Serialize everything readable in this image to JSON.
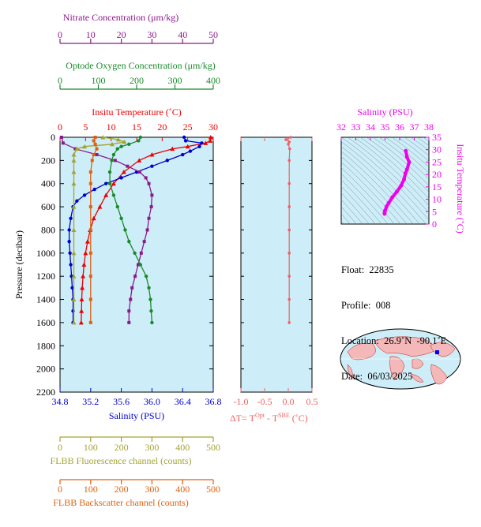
{
  "colors": {
    "nitrate": "#8b1a8b",
    "oxygen": "#1a8a2a",
    "temperature": "#ee0000",
    "salinity": "#0000cc",
    "fluorescence": "#a3a332",
    "backscatter": "#e06010",
    "salinity_panel": "#ee00ee",
    "delta_t": "#f06060",
    "plot_bg": "#cdeef8"
  },
  "info": {
    "float_label": "Float:",
    "float_value": "22835",
    "profile_label": "Profile:",
    "profile_value": "008",
    "location_label": "Location:",
    "location_value": "26.9˚N  -90.1˚E",
    "date_label": "Date:",
    "date_value": "06/03/2025"
  },
  "chart_data": [
    {
      "type": "line",
      "ylabel": "Pressure (decibar)",
      "yticks": [
        "0",
        "200",
        "400",
        "600",
        "800",
        "1000",
        "1200",
        "1400",
        "1600",
        "1800",
        "2000",
        "2200"
      ],
      "ylim": [
        2200,
        0
      ],
      "axes": {
        "temperature": {
          "label": "Insitu Temperature (˚C)",
          "range": [
            0,
            30
          ],
          "ticks": [
            "0",
            "5",
            "10",
            "15",
            "20",
            "25",
            "30"
          ]
        },
        "salinity": {
          "label": "Salinity (PSU)",
          "range": [
            34.8,
            36.8
          ],
          "ticks": [
            "34.8",
            "35.2",
            "35.6",
            "36.0",
            "36.4",
            "36.8"
          ]
        },
        "nitrate": {
          "label": "Nitrate Concentration (μm/kg)",
          "range": [
            0,
            50
          ],
          "ticks": [
            "0",
            "10",
            "20",
            "30",
            "40",
            "50"
          ]
        },
        "oxygen": {
          "label": "Optode Oxygen Concentration (μm/kg)",
          "range": [
            0,
            400
          ],
          "ticks": [
            "0",
            "100",
            "200",
            "300",
            "400"
          ]
        },
        "fluorescence": {
          "label": "FLBB Fluorescence channel (counts)",
          "range": [
            0,
            500
          ],
          "ticks": [
            "0",
            "100",
            "200",
            "300",
            "400",
            "500"
          ]
        },
        "backscatter": {
          "label": "FLBB Backscatter channel (counts)",
          "range": [
            0,
            500
          ],
          "ticks": [
            "0",
            "100",
            "200",
            "300",
            "400",
            "500"
          ]
        }
      },
      "series": [
        {
          "key": "temperature",
          "marker": "triangle",
          "points": [
            [
              0,
              29.5
            ],
            [
              30,
              29.4
            ],
            [
              50,
              28.5
            ],
            [
              80,
              25
            ],
            [
              100,
              22
            ],
            [
              150,
              18
            ],
            [
              200,
              15.5
            ],
            [
              300,
              12.5
            ],
            [
              400,
              10.5
            ],
            [
              500,
              9
            ],
            [
              600,
              7.8
            ],
            [
              700,
              6.6
            ],
            [
              800,
              5.9
            ],
            [
              900,
              5.4
            ],
            [
              1000,
              5.0
            ],
            [
              1100,
              4.7
            ],
            [
              1200,
              4.5
            ],
            [
              1300,
              4.35
            ],
            [
              1400,
              4.25
            ],
            [
              1500,
              4.2
            ],
            [
              1600,
              4.15
            ]
          ]
        },
        {
          "key": "salinity",
          "marker": "circle",
          "points": [
            [
              0,
              36.42
            ],
            [
              30,
              36.44
            ],
            [
              50,
              36.65
            ],
            [
              80,
              36.62
            ],
            [
              120,
              36.5
            ],
            [
              150,
              36.4
            ],
            [
              200,
              36.2
            ],
            [
              250,
              36.0
            ],
            [
              300,
              35.8
            ],
            [
              350,
              35.6
            ],
            [
              400,
              35.4
            ],
            [
              450,
              35.25
            ],
            [
              500,
              35.12
            ],
            [
              550,
              35.02
            ],
            [
              600,
              34.97
            ],
            [
              700,
              34.94
            ],
            [
              800,
              34.92
            ],
            [
              900,
              34.92
            ],
            [
              1000,
              34.93
            ],
            [
              1100,
              34.94
            ],
            [
              1200,
              34.95
            ],
            [
              1300,
              34.96
            ],
            [
              1400,
              34.97
            ],
            [
              1500,
              34.97
            ],
            [
              1600,
              34.97
            ]
          ]
        },
        {
          "key": "nitrate",
          "marker": "square",
          "points": [
            [
              0,
              0.5
            ],
            [
              50,
              1
            ],
            [
              100,
              5
            ],
            [
              150,
              12
            ],
            [
              200,
              18
            ],
            [
              250,
              22
            ],
            [
              300,
              26
            ],
            [
              350,
              28
            ],
            [
              400,
              29
            ],
            [
              500,
              30
            ],
            [
              600,
              29.8
            ],
            [
              700,
              29
            ],
            [
              800,
              28.5
            ],
            [
              900,
              27.5
            ],
            [
              1000,
              26.5
            ],
            [
              1100,
              25.5
            ],
            [
              1200,
              24.5
            ],
            [
              1300,
              23.5
            ],
            [
              1400,
              23
            ],
            [
              1500,
              22.5
            ],
            [
              1600,
              22.5
            ]
          ]
        },
        {
          "key": "oxygen",
          "marker": "circle",
          "points": [
            [
              0,
              210
            ],
            [
              30,
              205
            ],
            [
              60,
              180
            ],
            [
              80,
              160
            ],
            [
              100,
              150
            ],
            [
              150,
              140
            ],
            [
              200,
              135
            ],
            [
              300,
              130
            ],
            [
              400,
              130
            ],
            [
              500,
              140
            ],
            [
              600,
              150
            ],
            [
              700,
              160
            ],
            [
              800,
              170
            ],
            [
              900,
              180
            ],
            [
              1000,
              195
            ],
            [
              1100,
              210
            ],
            [
              1200,
              225
            ],
            [
              1300,
              232
            ],
            [
              1400,
              236
            ],
            [
              1500,
              238
            ],
            [
              1600,
              240
            ]
          ]
        },
        {
          "key": "fluorescence",
          "marker": "triangle",
          "points": [
            [
              0,
              140
            ],
            [
              20,
              190
            ],
            [
              40,
              210
            ],
            [
              60,
              170
            ],
            [
              80,
              80
            ],
            [
              100,
              55
            ],
            [
              150,
              45
            ],
            [
              200,
              45
            ],
            [
              300,
              45
            ],
            [
              400,
              45
            ],
            [
              600,
              45
            ],
            [
              800,
              45
            ],
            [
              1000,
              45
            ],
            [
              1200,
              45
            ],
            [
              1400,
              45
            ],
            [
              1600,
              45
            ]
          ]
        },
        {
          "key": "backscatter",
          "marker": "square",
          "points": [
            [
              0,
              115
            ],
            [
              30,
              110
            ],
            [
              60,
              115
            ],
            [
              100,
              120
            ],
            [
              150,
              110
            ],
            [
              200,
              105
            ],
            [
              300,
              100
            ],
            [
              400,
              100
            ],
            [
              600,
              100
            ],
            [
              800,
              100
            ],
            [
              1000,
              100
            ],
            [
              1200,
              100
            ],
            [
              1400,
              100
            ],
            [
              1600,
              100
            ]
          ]
        }
      ]
    },
    {
      "type": "line",
      "xlabel": "ΔT= T^Opt - T^SBE (˚C)",
      "xlim": [
        -1.0,
        0.5
      ],
      "xticks": [
        "-1.0",
        "-0.5",
        "0.0",
        "0.5"
      ],
      "ylim": [
        2200,
        0
      ],
      "points": [
        [
          0,
          0.05
        ],
        [
          20,
          -0.05
        ],
        [
          40,
          0.02
        ],
        [
          60,
          0.0
        ],
        [
          100,
          0.03
        ],
        [
          200,
          0.02
        ],
        [
          400,
          0.02
        ],
        [
          600,
          0.02
        ],
        [
          800,
          0.02
        ],
        [
          1000,
          0.02
        ],
        [
          1200,
          0.02
        ],
        [
          1400,
          0.02
        ],
        [
          1600,
          0.02
        ]
      ]
    },
    {
      "type": "scatter",
      "title": "Salinity (PSU)",
      "ylabel": "Insitu Temperature (˚C)",
      "xlim": [
        32,
        38
      ],
      "ylim": [
        0,
        35
      ],
      "xticks": [
        "32",
        "33",
        "34",
        "35",
        "36",
        "37",
        "38"
      ],
      "yticks": [
        "0",
        "5",
        "10",
        "15",
        "20",
        "25",
        "30",
        "35"
      ],
      "points": [
        [
          34.97,
          4.15
        ],
        [
          34.97,
          4.5
        ],
        [
          35.0,
          5.4
        ],
        [
          35.1,
          7.0
        ],
        [
          35.25,
          8.5
        ],
        [
          35.5,
          10.8
        ],
        [
          35.8,
          13.0
        ],
        [
          36.1,
          15.5
        ],
        [
          36.3,
          18.0
        ],
        [
          36.4,
          20.5
        ],
        [
          36.5,
          22.0
        ],
        [
          36.65,
          25.0
        ],
        [
          36.5,
          27.0
        ],
        [
          36.42,
          29.5
        ]
      ]
    }
  ]
}
